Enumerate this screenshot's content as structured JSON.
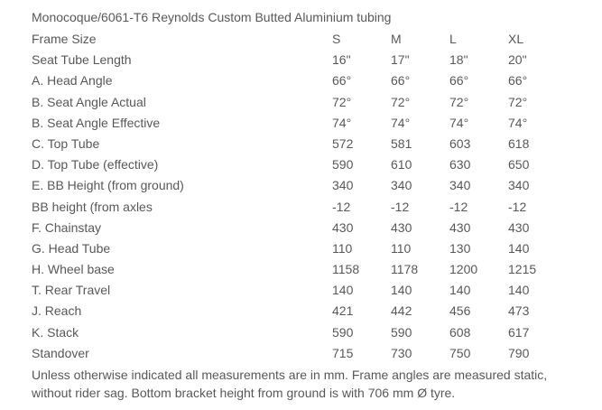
{
  "title": "Monocoque/6061-T6 Reynolds Custom Butted Aluminium tubing",
  "table": {
    "header": {
      "label": "Frame Size",
      "columns": [
        "S",
        "M",
        "L",
        "XL"
      ]
    },
    "rows": [
      {
        "label": "Seat Tube Length",
        "values": [
          "16\"",
          "17\"",
          "18\"",
          "20\""
        ]
      },
      {
        "label": "A. Head Angle",
        "values": [
          "66°",
          "66°",
          "66°",
          "66°"
        ]
      },
      {
        "label": "B. Seat Angle Actual",
        "values": [
          "72°",
          "72°",
          "72°",
          "72°"
        ]
      },
      {
        "label": "B. Seat Angle Effective",
        "values": [
          "74°",
          "74°",
          "74°",
          "74°"
        ]
      },
      {
        "label": "C. Top Tube",
        "values": [
          "572",
          "581",
          "603",
          "618"
        ]
      },
      {
        "label": "D. Top Tube (effective)",
        "values": [
          "590",
          "610",
          "630",
          "650"
        ]
      },
      {
        "label": "E. BB Height (from ground)",
        "values": [
          "340",
          "340",
          "340",
          "340"
        ]
      },
      {
        "label": "BB height (from axles",
        "values": [
          "-12",
          "-12",
          "-12",
          "-12"
        ]
      },
      {
        "label": "F. Chainstay",
        "values": [
          "430",
          "430",
          "430",
          "430"
        ]
      },
      {
        "label": "G. Head Tube",
        "values": [
          "110",
          "110",
          "130",
          "140"
        ]
      },
      {
        "label": "H. Wheel base",
        "values": [
          "1158",
          "1178",
          "1200",
          "1215"
        ]
      },
      {
        "label": "T. Rear Travel",
        "values": [
          "140",
          "140",
          "140",
          "140"
        ]
      },
      {
        "label": "J. Reach",
        "values": [
          "421",
          "442",
          "456",
          "473"
        ]
      },
      {
        "label": "K. Stack",
        "values": [
          "590",
          "590",
          "608",
          "617"
        ]
      },
      {
        "label": "Standover",
        "values": [
          "715",
          "730",
          "750",
          "790"
        ]
      }
    ]
  },
  "footnote_lines": [
    "Unless otherwise indicated all measurements are in mm. Frame angles are measured static,",
    "without rider sag. Bottom bracket height from ground is with 706 mm Ø tyre."
  ],
  "text_color": "#57585a",
  "background_color": "#ffffff"
}
